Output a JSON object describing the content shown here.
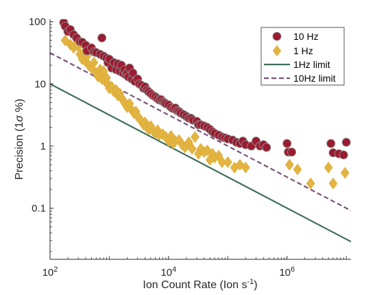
{
  "chart_data": {
    "type": "scatter",
    "xscale": "log",
    "yscale": "log",
    "xlim": [
      100,
      12000000
    ],
    "ylim": [
      0.015,
      110
    ],
    "xticks": [
      {
        "value": 100,
        "base": "10",
        "exp": "2"
      },
      {
        "value": 10000,
        "base": "10",
        "exp": "4"
      },
      {
        "value": 1000000,
        "base": "10",
        "exp": "6"
      }
    ],
    "yticks": [
      {
        "value": 100,
        "label": "100"
      },
      {
        "value": 10,
        "label": "10"
      },
      {
        "value": 1,
        "label": "1"
      },
      {
        "value": 0.1,
        "label": "0.1"
      }
    ],
    "xlabel": {
      "main": "Ion Count Rate (Ion s",
      "sup": "-1",
      "end": ")"
    },
    "ylabel": {
      "main": "Precision  (1",
      "sigma": "σ",
      "end": " %)"
    },
    "legend": {
      "placement": "top-right",
      "entries": [
        "10 Hz",
        "1 Hz",
        "1Hz limit",
        "10Hz limit"
      ]
    },
    "colors": {
      "ten_hz": "#9b1b30",
      "one_hz": "#e3b441",
      "marker_edge": "#8c8c8c",
      "limit_1hz": "#3e6e58",
      "limit_10hz": "#7a5278"
    },
    "series": [
      {
        "name": "10 Hz",
        "marker": "circle",
        "points": [
          [
            170,
            97
          ],
          [
            180,
            85
          ],
          [
            200,
            70
          ],
          [
            220,
            75
          ],
          [
            250,
            62
          ],
          [
            280,
            55
          ],
          [
            320,
            48
          ],
          [
            350,
            47
          ],
          [
            400,
            42
          ],
          [
            420,
            34
          ],
          [
            500,
            38
          ],
          [
            550,
            33
          ],
          [
            600,
            32
          ],
          [
            700,
            30
          ],
          [
            750,
            55
          ],
          [
            800,
            28
          ],
          [
            900,
            26
          ],
          [
            950,
            22
          ],
          [
            1000,
            25
          ],
          [
            1100,
            18
          ],
          [
            1200,
            22
          ],
          [
            1300,
            17
          ],
          [
            1400,
            21
          ],
          [
            1500,
            16
          ],
          [
            1600,
            20
          ],
          [
            1700,
            15
          ],
          [
            1800,
            17
          ],
          [
            1900,
            14
          ],
          [
            2000,
            15
          ],
          [
            2100,
            13
          ],
          [
            2200,
            18
          ],
          [
            2400,
            12
          ],
          [
            2500,
            15
          ],
          [
            2700,
            11
          ],
          [
            3000,
            12
          ],
          [
            3200,
            10
          ],
          [
            3500,
            9.5
          ],
          [
            3800,
            8.5
          ],
          [
            4000,
            9
          ],
          [
            4300,
            8
          ],
          [
            4600,
            7.5
          ],
          [
            5000,
            7
          ],
          [
            5500,
            6.5
          ],
          [
            6000,
            6.2
          ],
          [
            6500,
            5.8
          ],
          [
            7000,
            5.5
          ],
          [
            7500,
            5.6
          ],
          [
            8000,
            5.2
          ],
          [
            8500,
            5
          ],
          [
            9000,
            4.8
          ],
          [
            10000,
            4.6
          ],
          [
            11000,
            4.2
          ],
          [
            12000,
            4
          ],
          [
            13000,
            4.1
          ],
          [
            14000,
            3.7
          ],
          [
            15000,
            3.6
          ],
          [
            16000,
            3.4
          ],
          [
            18000,
            3.2
          ],
          [
            20000,
            3
          ],
          [
            22000,
            2.8
          ],
          [
            24000,
            2.8
          ],
          [
            26000,
            2.6
          ],
          [
            30000,
            2.5
          ],
          [
            32000,
            2.2
          ],
          [
            35000,
            2.2
          ],
          [
            40000,
            2.1
          ],
          [
            45000,
            2
          ],
          [
            50000,
            1.85
          ],
          [
            55000,
            1.7
          ],
          [
            60000,
            1.6
          ],
          [
            70000,
            1.5
          ],
          [
            80000,
            1.4
          ],
          [
            90000,
            1.35
          ],
          [
            100000,
            1.3
          ],
          [
            120000,
            1.25
          ],
          [
            140000,
            1.15
          ],
          [
            160000,
            1.1
          ],
          [
            180000,
            1.2
          ],
          [
            200000,
            1.05
          ],
          [
            250000,
            1
          ],
          [
            300000,
            1.2
          ],
          [
            350000,
            1
          ],
          [
            400000,
            1.05
          ],
          [
            450000,
            0.95
          ],
          [
            1000000,
            1.1
          ],
          [
            1050000,
            0.8
          ],
          [
            1200000,
            0.8
          ],
          [
            5500000,
            1.1
          ],
          [
            6000000,
            0.78
          ],
          [
            7500000,
            0.75
          ],
          [
            9000000,
            0.72
          ],
          [
            10000000,
            1.15
          ]
        ]
      },
      {
        "name": "1 Hz",
        "marker": "diamond",
        "points": [
          [
            180,
            50
          ],
          [
            220,
            43
          ],
          [
            250,
            38
          ],
          [
            280,
            45
          ],
          [
            300,
            40
          ],
          [
            320,
            30
          ],
          [
            350,
            25
          ],
          [
            380,
            33
          ],
          [
            400,
            23
          ],
          [
            420,
            28
          ],
          [
            450,
            20
          ],
          [
            500,
            18
          ],
          [
            550,
            22
          ],
          [
            600,
            15
          ],
          [
            650,
            13
          ],
          [
            700,
            17
          ],
          [
            750,
            12
          ],
          [
            800,
            16
          ],
          [
            850,
            11
          ],
          [
            900,
            12.5
          ],
          [
            950,
            10
          ],
          [
            1000,
            8.5
          ],
          [
            1100,
            9
          ],
          [
            1200,
            7.5
          ],
          [
            1300,
            8
          ],
          [
            1400,
            6.5
          ],
          [
            1500,
            7
          ],
          [
            1600,
            6
          ],
          [
            1700,
            5.5
          ],
          [
            1800,
            5
          ],
          [
            1900,
            4.6
          ],
          [
            2000,
            4.2
          ],
          [
            2200,
            4.8
          ],
          [
            2400,
            3.8
          ],
          [
            2600,
            3.4
          ],
          [
            2800,
            3.6
          ],
          [
            3000,
            3
          ],
          [
            3200,
            2.8
          ],
          [
            3500,
            2.5
          ],
          [
            3800,
            2.2
          ],
          [
            4000,
            2.4
          ],
          [
            4300,
            2
          ],
          [
            4700,
            1.85
          ],
          [
            5000,
            2.1
          ],
          [
            5500,
            1.75
          ],
          [
            6000,
            1.6
          ],
          [
            6500,
            1.8
          ],
          [
            7000,
            1.5
          ],
          [
            8000,
            1.55
          ],
          [
            9000,
            1.4
          ],
          [
            10000,
            1.2
          ],
          [
            11000,
            1.45
          ],
          [
            12000,
            1.1
          ],
          [
            13000,
            1.2
          ],
          [
            15000,
            1.25
          ],
          [
            17000,
            1.05
          ],
          [
            19000,
            0.95
          ],
          [
            22000,
            1.15
          ],
          [
            25000,
            0.9
          ],
          [
            28000,
            1.4
          ],
          [
            32000,
            0.75
          ],
          [
            35000,
            0.9
          ],
          [
            40000,
            0.8
          ],
          [
            45000,
            0.85
          ],
          [
            50000,
            0.6
          ],
          [
            55000,
            0.75
          ],
          [
            60000,
            0.65
          ],
          [
            70000,
            0.7
          ],
          [
            80000,
            0.55
          ],
          [
            100000,
            0.55
          ],
          [
            130000,
            0.45
          ],
          [
            160000,
            0.5
          ],
          [
            200000,
            0.45
          ],
          [
            1100000,
            0.5
          ],
          [
            1500000,
            0.42
          ],
          [
            2500000,
            0.25
          ],
          [
            5000000,
            0.45
          ],
          [
            6000000,
            0.25
          ],
          [
            9500000,
            0.37
          ]
        ]
      }
    ],
    "lines": [
      {
        "name": "1Hz limit",
        "style": "solid",
        "y_at_x100": 10,
        "slope": -0.5
      },
      {
        "name": "10Hz limit",
        "style": "dashed",
        "y_at_x100": 31.6,
        "slope": -0.5
      }
    ]
  }
}
